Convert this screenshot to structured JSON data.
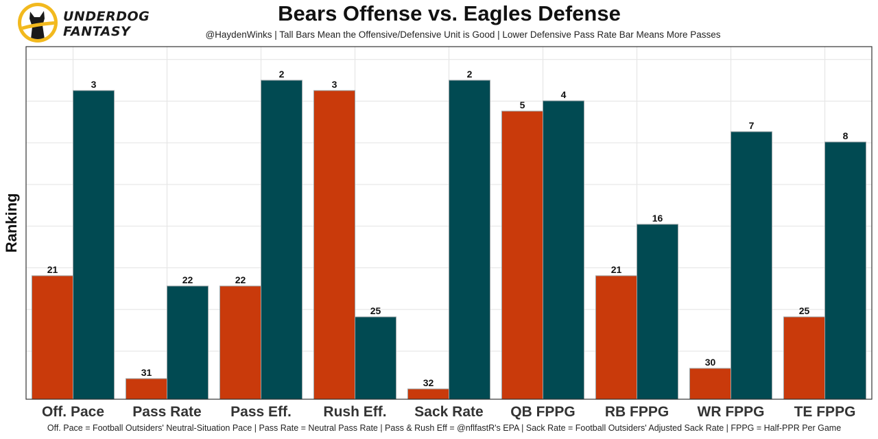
{
  "logo": {
    "line1": "UNDERDOG",
    "line2": "FANTASY",
    "colors": {
      "ring": "#f2b91e",
      "dog": "#1a1a1a"
    }
  },
  "header": {
    "title": "Bears Offense vs. Eagles Defense",
    "subtitle": "@HaydenWinks | Tall Bars Mean the Offensive/Defensive Unit is Good | Lower Defensive Pass Rate Bar Means More Passes"
  },
  "caption": "Off. Pace = Football Outsiders' Neutral-Situation Pace | Pass Rate = Neutral Pass Rate | Pass & Rush Eff = @nflfastR's EPA | Sack Rate = Football Outsiders' Adjusted Sack Rate | FPPG = Half-PPR Per Game",
  "chart_data": {
    "type": "bar",
    "title": "Bears Offense vs. Eagles Defense",
    "subtitle": "@HaydenWinks | Tall Bars Mean the Offensive/Defensive Unit is Good | Lower Defensive Pass Rate Bar Means More Passes",
    "xlabel": "",
    "ylabel": "Ranking",
    "bar_height_rule": "bar height = 33 - rank (rank 1 is tallest)",
    "ylim": [
      0,
      34
    ],
    "y_tick_labels_shown": false,
    "grid": true,
    "legend": "none",
    "categories": [
      "Off. Pace",
      "Pass Rate",
      "Pass Eff.",
      "Rush Eff.",
      "Sack Rate",
      "QB FPPG",
      "RB FPPG",
      "WR FPPG",
      "TE FPPG"
    ],
    "series": [
      {
        "name": "Bears Offense",
        "color": "#c93a0b",
        "ranks": [
          21,
          31,
          22,
          3,
          32,
          5,
          21,
          30,
          25
        ]
      },
      {
        "name": "Eagles Defense",
        "color": "#014a52",
        "ranks": [
          3,
          22,
          2,
          25,
          2,
          4,
          16,
          7,
          8
        ]
      }
    ]
  }
}
